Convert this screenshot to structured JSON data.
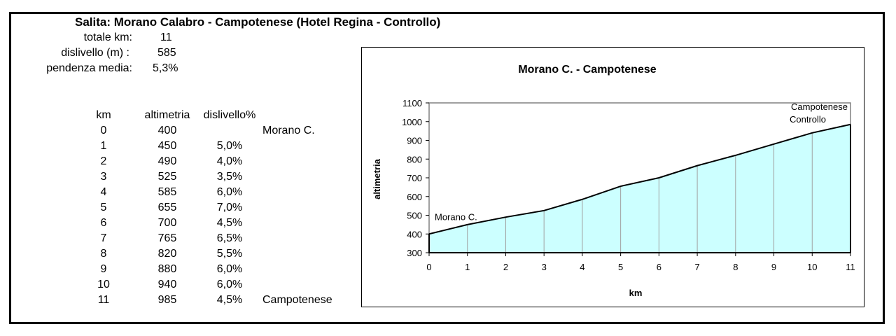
{
  "title": "Salita: Morano Calabro - Campotenese (Hotel Regina - Controllo)",
  "summary": [
    {
      "label": "totale km:",
      "value": "11"
    },
    {
      "label": "dislivello (m) :",
      "value": "585"
    },
    {
      "label": "pendenza media:",
      "value": "5,3%"
    }
  ],
  "table": {
    "headers": [
      "km",
      "altimetria",
      "dislivello%"
    ],
    "rows": [
      {
        "km": "0",
        "alt": "400",
        "pct": "",
        "note": "Morano C."
      },
      {
        "km": "1",
        "alt": "450",
        "pct": "5,0%",
        "note": ""
      },
      {
        "km": "2",
        "alt": "490",
        "pct": "4,0%",
        "note": ""
      },
      {
        "km": "3",
        "alt": "525",
        "pct": "3,5%",
        "note": ""
      },
      {
        "km": "4",
        "alt": "585",
        "pct": "6,0%",
        "note": ""
      },
      {
        "km": "5",
        "alt": "655",
        "pct": "7,0%",
        "note": ""
      },
      {
        "km": "6",
        "alt": "700",
        "pct": "4,5%",
        "note": ""
      },
      {
        "km": "7",
        "alt": "765",
        "pct": "6,5%",
        "note": ""
      },
      {
        "km": "8",
        "alt": "820",
        "pct": "5,5%",
        "note": ""
      },
      {
        "km": "9",
        "alt": "880",
        "pct": "6,0%",
        "note": ""
      },
      {
        "km": "10",
        "alt": "940",
        "pct": "6,0%",
        "note": ""
      },
      {
        "km": "11",
        "alt": "985",
        "pct": "4,5%",
        "note": "Campotenese"
      }
    ]
  },
  "chart_data": {
    "type": "area",
    "title": "Morano C. - Campotenese",
    "xlabel": "km",
    "ylabel": "altimetria",
    "x": [
      0,
      1,
      2,
      3,
      4,
      5,
      6,
      7,
      8,
      9,
      10,
      11
    ],
    "y": [
      400,
      450,
      490,
      525,
      585,
      655,
      700,
      765,
      820,
      880,
      940,
      985
    ],
    "xlim": [
      0,
      11
    ],
    "ylim": [
      300,
      1100
    ],
    "yticks": [
      300,
      400,
      500,
      600,
      700,
      800,
      900,
      1000,
      1100
    ],
    "xticks": [
      0,
      1,
      2,
      3,
      4,
      5,
      6,
      7,
      8,
      9,
      10,
      11
    ],
    "annotations": [
      {
        "x": 0,
        "text": "Morano C."
      },
      {
        "x": 11,
        "text": "Campotenese",
        "text2": "Controllo"
      }
    ],
    "fill_color": "#ccffff",
    "line_color": "#000000",
    "grid_color": "#a0a0a0"
  }
}
